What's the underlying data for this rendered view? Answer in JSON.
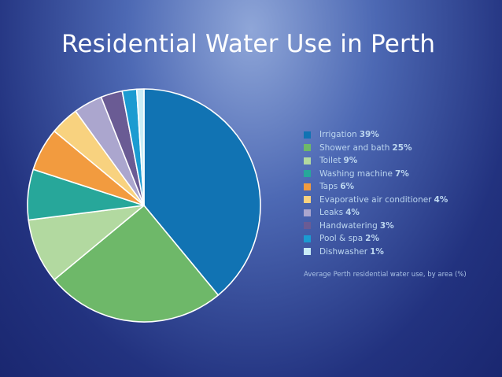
{
  "title": "Residential Water Use in Perth",
  "caption": "Average Perth residential water use, by area (%)",
  "chart_data": {
    "type": "pie",
    "title": "Residential Water Use in Perth",
    "legend_position": "right",
    "slices": [
      {
        "label": "Irrigation",
        "pct_label": "39%",
        "value": 39,
        "color": "#1173b3"
      },
      {
        "label": "Shower and bath",
        "pct_label": "25%",
        "value": 25,
        "color": "#6eb869"
      },
      {
        "label": "Toilet",
        "pct_label": "9%",
        "value": 9,
        "color": "#b2d9a0"
      },
      {
        "label": "Washing machine",
        "pct_label": "7%",
        "value": 7,
        "color": "#27a79a"
      },
      {
        "label": "Taps",
        "pct_label": "6%",
        "value": 6,
        "color": "#f29b3f"
      },
      {
        "label": "Evaporative air conditioner",
        "pct_label": "4%",
        "value": 4,
        "color": "#f8d27f"
      },
      {
        "label": "Leaks",
        "pct_label": "4%",
        "value": 4,
        "color": "#aba6ce"
      },
      {
        "label": "Handwatering",
        "pct_label": "3%",
        "value": 3,
        "color": "#6a5b94"
      },
      {
        "label": "Pool & spa",
        "pct_label": "2%",
        "value": 2,
        "color": "#1b9bd1"
      },
      {
        "label": "Dishwasher",
        "pct_label": "1%",
        "value": 1,
        "color": "#c9ecf6"
      }
    ]
  }
}
